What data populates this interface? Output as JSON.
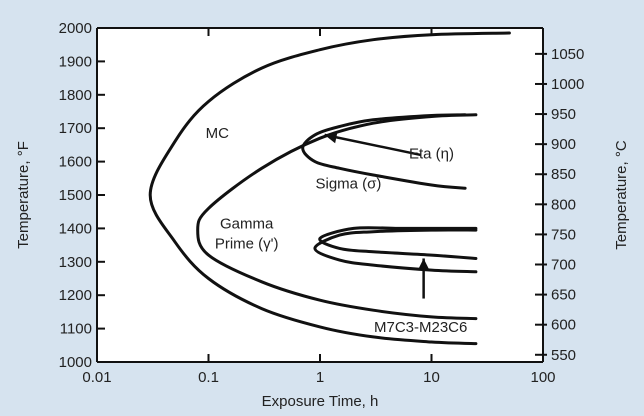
{
  "chart_data": {
    "type": "line",
    "xlabel": "Exposure Time, h",
    "ylabel": "Temperature, °F",
    "y2label": "Temperature, °C",
    "x_scale": "log",
    "xlim": [
      0.01,
      100
    ],
    "ylim": [
      1000,
      2000
    ],
    "y2lim_celsius": [
      538,
      1093
    ],
    "x_ticks": [
      {
        "v": 0.01,
        "label": "0.01"
      },
      {
        "v": 0.1,
        "label": "0.1"
      },
      {
        "v": 1,
        "label": "1"
      },
      {
        "v": 10,
        "label": "10"
      },
      {
        "v": 100,
        "label": "100"
      }
    ],
    "y_ticks": [
      {
        "v": 1000,
        "label": "1000"
      },
      {
        "v": 1100,
        "label": "1100"
      },
      {
        "v": 1200,
        "label": "1200"
      },
      {
        "v": 1300,
        "label": "1300"
      },
      {
        "v": 1400,
        "label": "1400"
      },
      {
        "v": 1500,
        "label": "1500"
      },
      {
        "v": 1600,
        "label": "1600"
      },
      {
        "v": 1700,
        "label": "1700"
      },
      {
        "v": 1800,
        "label": "1800"
      },
      {
        "v": 1900,
        "label": "1900"
      },
      {
        "v": 2000,
        "label": "2000"
      }
    ],
    "y2_ticks": [
      {
        "v": 550,
        "label": "550"
      },
      {
        "v": 600,
        "label": "600"
      },
      {
        "v": 650,
        "label": "650"
      },
      {
        "v": 700,
        "label": "700"
      },
      {
        "v": 750,
        "label": "750"
      },
      {
        "v": 800,
        "label": "800"
      },
      {
        "v": 850,
        "label": "850"
      },
      {
        "v": 900,
        "label": "900"
      },
      {
        "v": 950,
        "label": "950"
      },
      {
        "v": 1000,
        "label": "1000"
      },
      {
        "v": 1050,
        "label": "1050"
      }
    ],
    "series": [
      {
        "name": "MC",
        "x": [
          50,
          10,
          3,
          1,
          0.3,
          0.1,
          0.05,
          0.03,
          0.05,
          0.1,
          0.3,
          1,
          3,
          10,
          25
        ],
        "y": [
          1985,
          1980,
          1965,
          1935,
          1880,
          1780,
          1660,
          1500,
          1360,
          1250,
          1160,
          1105,
          1075,
          1060,
          1055
        ]
      },
      {
        "name": "Gamma Prime (γ')",
        "x": [
          25,
          10,
          3,
          1,
          0.3,
          0.1,
          0.08,
          0.1,
          0.3,
          1,
          3,
          10,
          25
        ],
        "y": [
          1740,
          1735,
          1715,
          1670,
          1580,
          1460,
          1395,
          1320,
          1240,
          1185,
          1155,
          1135,
          1130
        ]
      },
      {
        "name": "Sigma (σ)",
        "x": [
          20,
          10,
          3,
          1.5,
          0.9,
          0.7,
          0.9,
          1.5,
          3,
          10,
          20
        ],
        "y": [
          1740,
          1738,
          1725,
          1705,
          1680,
          1640,
          1600,
          1580,
          1560,
          1530,
          1520
        ]
      },
      {
        "name": "Eta (η)",
        "x": [
          25,
          10,
          5,
          2,
          1,
          1.5,
          3,
          10,
          25
        ],
        "y": [
          1400,
          1400,
          1400,
          1400,
          1370,
          1340,
          1330,
          1320,
          1310
        ]
      },
      {
        "name": "M7C3-M23C6",
        "x": [
          25,
          10,
          3,
          1.5,
          0.9,
          1.5,
          3,
          10,
          25
        ],
        "y": [
          1395,
          1395,
          1390,
          1380,
          1340,
          1305,
          1290,
          1275,
          1270
        ]
      }
    ],
    "labels": [
      {
        "text": "MC",
        "x": 0.12,
        "y": 1670
      },
      {
        "text": "Eta (η)",
        "x": 10,
        "y": 1610
      },
      {
        "text": "Sigma (σ)",
        "x": 1.8,
        "y": 1520
      },
      {
        "text": "Gamma",
        "x": 0.22,
        "y": 1400
      },
      {
        "text": "Prime (γ')",
        "x": 0.22,
        "y": 1340
      },
      {
        "text": "M7C3-M23C6",
        "x": 8,
        "y": 1090
      }
    ],
    "arrows": [
      {
        "from": [
          8,
          1620
        ],
        "to": [
          1.1,
          1680
        ]
      },
      {
        "from": [
          8.5,
          1190
        ],
        "to": [
          8.5,
          1310
        ]
      }
    ]
  }
}
